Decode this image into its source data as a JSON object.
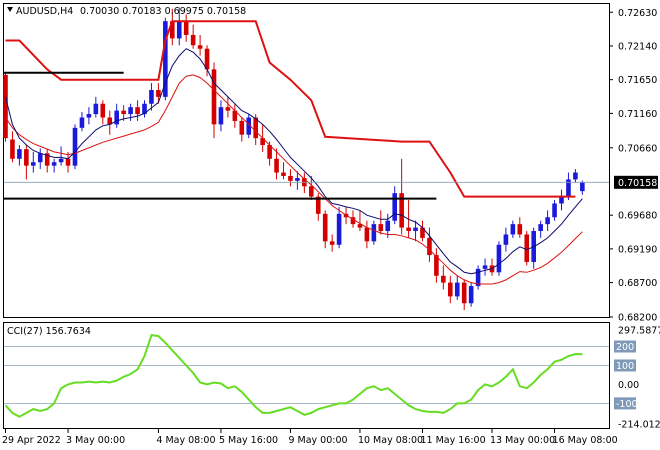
{
  "header": {
    "symbol": "AUDUSD,H4",
    "ohlc": "0.70030 0.70183 0.69975 0.70158",
    "menu_icon": "triangle-down-icon"
  },
  "indicator": {
    "label": "CCI(27) 156.7634"
  },
  "colors": {
    "bull": "#1a1adb",
    "bear": "#d40000",
    "ma_fast": "#0a0a6e",
    "ma_slow": "#dd1111",
    "step_line": "#dd1111",
    "support": "#000000",
    "cci_line": "#66dd22",
    "cci_level": "#8aa0b8"
  },
  "chart_data": [
    {
      "type": "candlestick",
      "ylim": [
        0.682,
        0.7275
      ],
      "y_ticks": [
        "0.72630",
        "0.72140",
        "0.71650",
        "0.71160",
        "0.70660",
        "0.70158",
        "0.69680",
        "0.69190",
        "0.68700",
        "0.68200"
      ],
      "current_price": "0.70158",
      "x_ticks": [
        "29 Apr 2022",
        "3 May 00:00",
        "4 May 08:00",
        "5 May 16:00",
        "9 May 00:00",
        "10 May 08:00",
        "11 May 16:00",
        "13 May 00:00",
        "16 May 08:00"
      ],
      "candles": [
        [
          0.7172,
          0.7174,
          0.7075,
          0.708
        ],
        [
          0.7078,
          0.709,
          0.7045,
          0.705
        ],
        [
          0.705,
          0.707,
          0.704,
          0.7064
        ],
        [
          0.7064,
          0.707,
          0.702,
          0.704
        ],
        [
          0.704,
          0.706,
          0.703,
          0.7045
        ],
        [
          0.7045,
          0.7065,
          0.7035,
          0.7058
        ],
        [
          0.7058,
          0.7064,
          0.703,
          0.704
        ],
        [
          0.704,
          0.705,
          0.703,
          0.7045
        ],
        [
          0.7045,
          0.7068,
          0.704,
          0.705
        ],
        [
          0.705,
          0.706,
          0.703,
          0.704
        ],
        [
          0.704,
          0.71,
          0.7035,
          0.7095
        ],
        [
          0.7095,
          0.7118,
          0.709,
          0.711
        ],
        [
          0.711,
          0.7125,
          0.71,
          0.7115
        ],
        [
          0.7115,
          0.714,
          0.711,
          0.713
        ],
        [
          0.713,
          0.7135,
          0.71,
          0.711
        ],
        [
          0.711,
          0.712,
          0.7085,
          0.71
        ],
        [
          0.71,
          0.713,
          0.7095,
          0.712
        ],
        [
          0.712,
          0.7128,
          0.7105,
          0.7115
        ],
        [
          0.7115,
          0.713,
          0.7105,
          0.7125
        ],
        [
          0.7125,
          0.7135,
          0.7105,
          0.7115
        ],
        [
          0.7115,
          0.7135,
          0.711,
          0.713
        ],
        [
          0.713,
          0.716,
          0.712,
          0.715
        ],
        [
          0.715,
          0.716,
          0.713,
          0.714
        ],
        [
          0.714,
          0.7255,
          0.7135,
          0.725
        ],
        [
          0.725,
          0.7268,
          0.7215,
          0.7225
        ],
        [
          0.7225,
          0.727,
          0.7215,
          0.725
        ],
        [
          0.725,
          0.726,
          0.722,
          0.723
        ],
        [
          0.723,
          0.7245,
          0.721,
          0.7215
        ],
        [
          0.7215,
          0.723,
          0.72,
          0.721
        ],
        [
          0.721,
          0.7215,
          0.717,
          0.718
        ],
        [
          0.718,
          0.719,
          0.708,
          0.71
        ],
        [
          0.71,
          0.7135,
          0.709,
          0.7125
        ],
        [
          0.7125,
          0.714,
          0.711,
          0.712
        ],
        [
          0.712,
          0.713,
          0.7095,
          0.7105
        ],
        [
          0.7105,
          0.711,
          0.7075,
          0.7085
        ],
        [
          0.7085,
          0.7115,
          0.708,
          0.711
        ],
        [
          0.711,
          0.7115,
          0.707,
          0.708
        ],
        [
          0.708,
          0.71,
          0.706,
          0.707
        ],
        [
          0.707,
          0.7075,
          0.704,
          0.705
        ],
        [
          0.705,
          0.7065,
          0.702,
          0.703
        ],
        [
          0.703,
          0.7045,
          0.702,
          0.7025
        ],
        [
          0.7025,
          0.7035,
          0.701,
          0.7018
        ],
        [
          0.7018,
          0.7032,
          0.7005,
          0.7022
        ],
        [
          0.7022,
          0.703,
          0.7,
          0.701
        ],
        [
          0.701,
          0.7025,
          0.699,
          0.6995
        ],
        [
          0.6995,
          0.7,
          0.696,
          0.697
        ],
        [
          0.697,
          0.6975,
          0.692,
          0.693
        ],
        [
          0.693,
          0.694,
          0.6915,
          0.6925
        ],
        [
          0.6925,
          0.698,
          0.692,
          0.697
        ],
        [
          0.697,
          0.698,
          0.6955,
          0.6965
        ],
        [
          0.6965,
          0.6975,
          0.695,
          0.6955
        ],
        [
          0.6955,
          0.6975,
          0.6945,
          0.695
        ],
        [
          0.695,
          0.696,
          0.692,
          0.693
        ],
        [
          0.693,
          0.696,
          0.6925,
          0.6955
        ],
        [
          0.6955,
          0.6975,
          0.694,
          0.6945
        ],
        [
          0.6945,
          0.697,
          0.6935,
          0.696
        ],
        [
          0.696,
          0.701,
          0.6955,
          0.7
        ],
        [
          0.7,
          0.705,
          0.694,
          0.695
        ],
        [
          0.695,
          0.699,
          0.6935,
          0.6945
        ],
        [
          0.6945,
          0.696,
          0.693,
          0.695
        ],
        [
          0.695,
          0.696,
          0.693,
          0.6935
        ],
        [
          0.6935,
          0.695,
          0.69,
          0.691
        ],
        [
          0.691,
          0.692,
          0.687,
          0.688
        ],
        [
          0.688,
          0.6895,
          0.686,
          0.687
        ],
        [
          0.687,
          0.688,
          0.684,
          0.685
        ],
        [
          0.685,
          0.688,
          0.6845,
          0.687
        ],
        [
          0.687,
          0.6875,
          0.683,
          0.684
        ],
        [
          0.684,
          0.687,
          0.6835,
          0.6865
        ],
        [
          0.6865,
          0.6895,
          0.686,
          0.689
        ],
        [
          0.689,
          0.6905,
          0.688,
          0.6895
        ],
        [
          0.6895,
          0.6905,
          0.688,
          0.6885
        ],
        [
          0.6885,
          0.693,
          0.688,
          0.6925
        ],
        [
          0.6925,
          0.695,
          0.6915,
          0.694
        ],
        [
          0.694,
          0.696,
          0.6935,
          0.6955
        ],
        [
          0.6955,
          0.6965,
          0.6935,
          0.694
        ],
        [
          0.694,
          0.6945,
          0.6895,
          0.69
        ],
        [
          0.69,
          0.695,
          0.689,
          0.6945
        ],
        [
          0.6945,
          0.696,
          0.6935,
          0.6955
        ],
        [
          0.6955,
          0.6975,
          0.6945,
          0.6965
        ],
        [
          0.6965,
          0.699,
          0.696,
          0.6985
        ],
        [
          0.6985,
          0.7005,
          0.6975,
          0.6995
        ],
        [
          0.6995,
          0.703,
          0.699,
          0.702
        ],
        [
          0.702,
          0.7035,
          0.7015,
          0.703
        ],
        [
          0.7003,
          0.70183,
          0.69975,
          0.70158
        ]
      ],
      "ma_fast": [
        0.714,
        0.71,
        0.708,
        0.707,
        0.7062,
        0.7058,
        0.7055,
        0.7052,
        0.7052,
        0.705,
        0.706,
        0.7072,
        0.7082,
        0.7092,
        0.7098,
        0.71,
        0.7105,
        0.7108,
        0.711,
        0.7112,
        0.7116,
        0.7124,
        0.7132,
        0.716,
        0.7185,
        0.72,
        0.721,
        0.7205,
        0.7195,
        0.718,
        0.716,
        0.715,
        0.714,
        0.713,
        0.712,
        0.7115,
        0.7108,
        0.71,
        0.709,
        0.7078,
        0.7065,
        0.7052,
        0.7042,
        0.7032,
        0.7022,
        0.701,
        0.6995,
        0.6985,
        0.6983,
        0.698,
        0.6978,
        0.6975,
        0.6968,
        0.6965,
        0.6962,
        0.6962,
        0.697,
        0.6968,
        0.6962,
        0.6958,
        0.695,
        0.6938,
        0.6925,
        0.6912,
        0.69,
        0.6893,
        0.6885,
        0.6883,
        0.6885,
        0.6888,
        0.689,
        0.6897,
        0.6905,
        0.6915,
        0.6922,
        0.6918,
        0.6922,
        0.6928,
        0.6935,
        0.6945,
        0.6955,
        0.6968,
        0.698,
        0.6992
      ],
      "ma_slow": [
        0.711,
        0.7095,
        0.7085,
        0.7078,
        0.7072,
        0.7068,
        0.7064,
        0.706,
        0.7058,
        0.7056,
        0.7058,
        0.7062,
        0.7066,
        0.707,
        0.7074,
        0.7077,
        0.708,
        0.7083,
        0.7086,
        0.7089,
        0.7092,
        0.7097,
        0.7103,
        0.712,
        0.714,
        0.716,
        0.717,
        0.7172,
        0.7168,
        0.716,
        0.715,
        0.714,
        0.713,
        0.712,
        0.711,
        0.71,
        0.709,
        0.708,
        0.707,
        0.706,
        0.705,
        0.704,
        0.703,
        0.702,
        0.7012,
        0.7002,
        0.6992,
        0.6982,
        0.6975,
        0.6968,
        0.6962,
        0.6956,
        0.695,
        0.6946,
        0.6942,
        0.694,
        0.694,
        0.6938,
        0.6935,
        0.6932,
        0.6926,
        0.6918,
        0.6908,
        0.6898,
        0.6888,
        0.688,
        0.6874,
        0.687,
        0.6868,
        0.6868,
        0.6868,
        0.687,
        0.6874,
        0.688,
        0.6886,
        0.6885,
        0.6888,
        0.6892,
        0.6898,
        0.6906,
        0.6914,
        0.6924,
        0.6934,
        0.6944
      ],
      "step_line": [
        [
          0,
          0.7222
        ],
        [
          2,
          0.7222
        ],
        [
          6,
          0.718
        ],
        [
          8,
          0.7165
        ],
        [
          22,
          0.7165
        ],
        [
          23,
          0.7222
        ],
        [
          24,
          0.725
        ],
        [
          30,
          0.725
        ],
        [
          31,
          0.725
        ],
        [
          36,
          0.725
        ],
        [
          38,
          0.719
        ],
        [
          41,
          0.7165
        ],
        [
          44,
          0.7135
        ],
        [
          46,
          0.7082
        ],
        [
          57,
          0.7075
        ],
        [
          61,
          0.7075
        ],
        [
          64,
          0.703
        ],
        [
          66,
          0.6995
        ],
        [
          82,
          0.6995
        ]
      ],
      "black_lines": [
        {
          "from_bar": 0,
          "to_bar": 17,
          "y": 0.7175
        },
        {
          "from_bar": 0,
          "to_bar": 62,
          "y": 0.6992
        }
      ]
    },
    {
      "type": "line",
      "title": "CCI(27) 156.7634",
      "ylim": [
        -214.0126,
        297.5877
      ],
      "y_ticks": [
        "297.5877",
        "200",
        "100",
        "0.00",
        "-100",
        "-214.0126"
      ],
      "levels": [
        200,
        100,
        -100
      ],
      "values": [
        -110,
        -150,
        -170,
        -150,
        -130,
        -140,
        -130,
        -100,
        -20,
        0,
        10,
        10,
        15,
        10,
        15,
        10,
        20,
        40,
        55,
        80,
        150,
        260,
        255,
        220,
        180,
        140,
        100,
        60,
        10,
        0,
        10,
        5,
        -20,
        -10,
        -40,
        -80,
        -120,
        -150,
        -150,
        -140,
        -130,
        -120,
        -140,
        -160,
        -150,
        -130,
        -120,
        -110,
        -100,
        -100,
        -80,
        -50,
        -20,
        -10,
        -30,
        -20,
        -50,
        -80,
        -110,
        -130,
        -140,
        -145,
        -145,
        -150,
        -130,
        -100,
        -100,
        -80,
        -30,
        0,
        -10,
        10,
        40,
        80,
        -10,
        -20,
        10,
        50,
        80,
        120,
        130,
        150,
        160,
        160
      ]
    }
  ]
}
